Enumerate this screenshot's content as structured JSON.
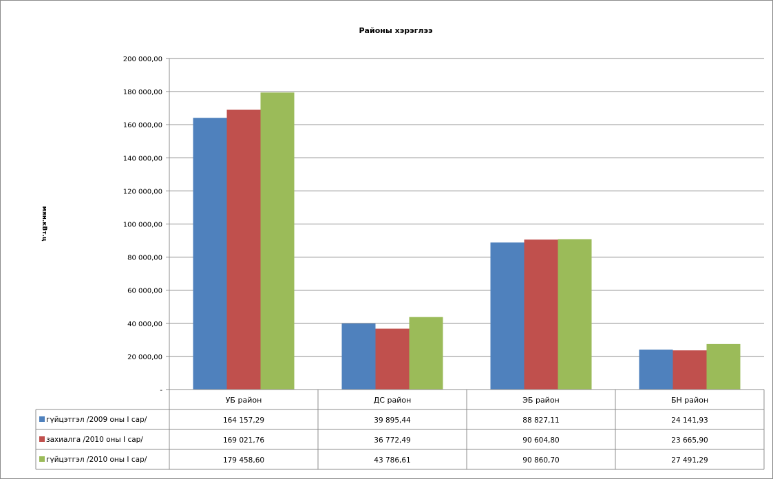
{
  "chart_data": {
    "type": "bar",
    "title": "Районы хэрэглээ",
    "ylabel": "мян.кВт.ц",
    "ylim": [
      0,
      200000
    ],
    "ytick_labels": [
      "-",
      "20 000,00",
      "40 000,00",
      "60 000,00",
      "80 000,00",
      "100 000,00",
      "120 000,00",
      "140 000,00",
      "160 000,00",
      "180 000,00",
      "200 000,00"
    ],
    "categories": [
      "УБ район",
      "ДС район",
      "ЭБ район",
      "БН район"
    ],
    "series": [
      {
        "name": "гүйцэтгэл /2009 оны I сар/",
        "color": "#4f81bd",
        "values": [
          164157.29,
          39895.44,
          88827.11,
          24141.93
        ],
        "labels": [
          "164 157,29",
          "39 895,44",
          "88 827,11",
          "24 141,93"
        ]
      },
      {
        "name": "захиалга /2010 оны I сар/",
        "color": "#c0504d",
        "values": [
          169021.76,
          36772.49,
          90604.8,
          23665.9
        ],
        "labels": [
          "169 021,76",
          "36 772,49",
          "90 604,80",
          "23 665,90"
        ]
      },
      {
        "name": "гүйцэтгэл /2010 оны I сар/",
        "color": "#9bbb59",
        "values": [
          179458.6,
          43786.61,
          90860.7,
          27491.29
        ],
        "labels": [
          "179 458,60",
          "43 786,61",
          "90 860,70",
          "27 491,29"
        ]
      }
    ],
    "grid": true,
    "legend": "data-table"
  }
}
